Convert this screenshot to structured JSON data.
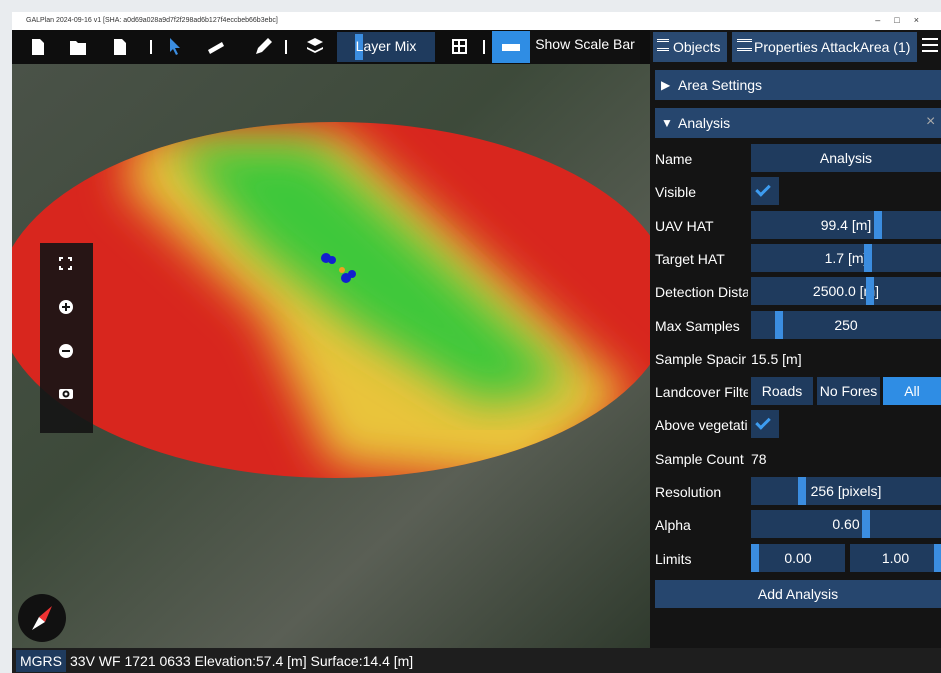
{
  "window": {
    "title": "GALPlan 2024-09-16 v1 [SHA: a0d69a028a9d7f2f298ad6b127f4eccbeb66b3ebc]"
  },
  "toolbar": {
    "layer_mix": "Layer Mix",
    "show_scale_bar": "Show Scale Bar"
  },
  "panel": {
    "tabs": [
      "Objects",
      "Properties AttackArea (1)"
    ],
    "sections": [
      "Area Settings",
      "Analysis"
    ],
    "rows": [
      {
        "label": "Name",
        "values": [
          "Analysis"
        ]
      },
      {
        "label": "Visible"
      },
      {
        "label": "UAV HAT",
        "values": [
          "99.4 [m]"
        ]
      },
      {
        "label": "Target HAT",
        "values": [
          "1.7 [m]"
        ]
      },
      {
        "label": "Detection Dista",
        "values": [
          "2500.0 [m]"
        ]
      },
      {
        "label": "Max Samples",
        "values": [
          "250"
        ]
      },
      {
        "label": "Sample Spacir",
        "values": [
          "15.5 [m]"
        ]
      },
      {
        "label": "Landcover Filte",
        "values": [
          "Roads",
          "No Fores",
          "All"
        ]
      },
      {
        "label": "Above vegetati"
      },
      {
        "label": "Sample Count",
        "values": [
          "78"
        ]
      },
      {
        "label": "Resolution",
        "values": [
          "256 [pixels]"
        ]
      },
      {
        "label": "Alpha",
        "values": [
          "0.60"
        ]
      },
      {
        "label": "Limits",
        "values": [
          "0.00",
          "1.00"
        ]
      }
    ],
    "add_button": "Add Analysis"
  },
  "status": {
    "system": "MGRS",
    "text": "33V WF 1721 0633 Elevation:57.4 [m] Surface:14.4 [m]"
  }
}
